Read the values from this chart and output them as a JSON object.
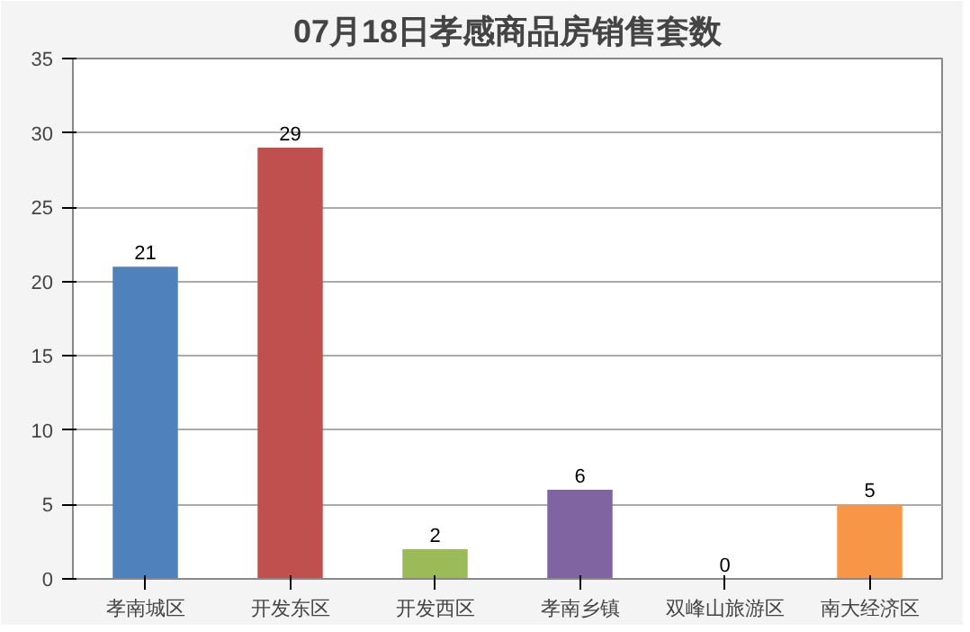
{
  "chart_data": {
    "type": "bar",
    "title": "07月18日孝感商品房销售套数",
    "categories": [
      "孝南城区",
      "开发东区",
      "开发西区",
      "孝南乡镇",
      "双峰山旅游区",
      "南大经济区"
    ],
    "values": [
      21,
      29,
      2,
      6,
      0,
      5
    ],
    "colors": [
      "#4f81bd",
      "#c0504d",
      "#9bbb59",
      "#8064a2",
      "#4bacc6",
      "#f79646"
    ],
    "ylim": [
      0,
      35
    ],
    "yticks": [
      0,
      5,
      10,
      15,
      20,
      25,
      30,
      35
    ],
    "grid": "y",
    "data_labels": true
  }
}
